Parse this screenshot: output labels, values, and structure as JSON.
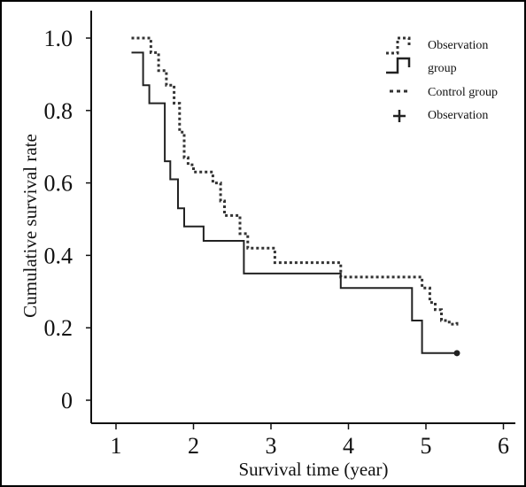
{
  "chart_data": {
    "type": "line",
    "subtype": "kaplan-meier-step",
    "title": "",
    "xlabel": "Survival time (year)",
    "ylabel": "Cumulative survival rate",
    "xlim": [
      0.7,
      6.0
    ],
    "ylim": [
      -0.05,
      1.05
    ],
    "xticks": [
      1,
      2,
      3,
      4,
      5,
      6
    ],
    "yticks": [
      {
        "value": 0,
        "label": "0"
      },
      {
        "value": 0.2,
        "label": "0.2"
      },
      {
        "value": 0.4,
        "label": "0.4"
      },
      {
        "value": 0.6,
        "label": "0.6"
      },
      {
        "value": 0.8,
        "label": "0.8"
      },
      {
        "value": 1.0,
        "label": "1.0"
      }
    ],
    "grid": false,
    "legend_position": "top-right",
    "legend": [
      {
        "label": "Observation",
        "style": "dotted-step"
      },
      {
        "label": "group",
        "style": "solid-step"
      },
      {
        "label": "Control group",
        "style": "dotted-dash"
      },
      {
        "label": "Observation",
        "style": "cross"
      }
    ],
    "series": [
      {
        "style": "dotted",
        "color": "#333333",
        "points": [
          [
            1.2,
            1.0
          ],
          [
            1.45,
            1.0
          ],
          [
            1.45,
            0.96
          ],
          [
            1.55,
            0.96
          ],
          [
            1.55,
            0.91
          ],
          [
            1.65,
            0.91
          ],
          [
            1.65,
            0.87
          ],
          [
            1.75,
            0.87
          ],
          [
            1.75,
            0.82
          ],
          [
            1.82,
            0.82
          ],
          [
            1.82,
            0.74
          ],
          [
            1.88,
            0.74
          ],
          [
            1.88,
            0.67
          ],
          [
            1.93,
            0.67
          ],
          [
            1.93,
            0.65
          ],
          [
            2.0,
            0.65
          ],
          [
            2.0,
            0.63
          ],
          [
            2.25,
            0.63
          ],
          [
            2.25,
            0.6
          ],
          [
            2.35,
            0.6
          ],
          [
            2.35,
            0.55
          ],
          [
            2.4,
            0.55
          ],
          [
            2.4,
            0.51
          ],
          [
            2.6,
            0.51
          ],
          [
            2.6,
            0.46
          ],
          [
            2.7,
            0.46
          ],
          [
            2.7,
            0.42
          ],
          [
            3.05,
            0.42
          ],
          [
            3.05,
            0.38
          ],
          [
            3.9,
            0.38
          ],
          [
            3.9,
            0.34
          ],
          [
            4.95,
            0.34
          ],
          [
            4.95,
            0.31
          ],
          [
            5.05,
            0.31
          ],
          [
            5.05,
            0.27
          ],
          [
            5.12,
            0.27
          ],
          [
            5.12,
            0.25
          ],
          [
            5.2,
            0.25
          ],
          [
            5.2,
            0.22
          ],
          [
            5.3,
            0.22
          ],
          [
            5.3,
            0.21
          ],
          [
            5.4,
            0.21
          ],
          [
            5.4,
            0.22
          ]
        ]
      },
      {
        "style": "solid",
        "color": "#222222",
        "points": [
          [
            1.2,
            0.96
          ],
          [
            1.35,
            0.96
          ],
          [
            1.35,
            0.87
          ],
          [
            1.43,
            0.87
          ],
          [
            1.43,
            0.82
          ],
          [
            1.63,
            0.82
          ],
          [
            1.63,
            0.66
          ],
          [
            1.7,
            0.66
          ],
          [
            1.7,
            0.61
          ],
          [
            1.8,
            0.61
          ],
          [
            1.8,
            0.53
          ],
          [
            1.88,
            0.53
          ],
          [
            1.88,
            0.48
          ],
          [
            2.13,
            0.48
          ],
          [
            2.13,
            0.44
          ],
          [
            2.65,
            0.44
          ],
          [
            2.65,
            0.35
          ],
          [
            3.9,
            0.35
          ],
          [
            3.9,
            0.31
          ],
          [
            4.82,
            0.31
          ],
          [
            4.82,
            0.22
          ],
          [
            4.95,
            0.22
          ],
          [
            4.95,
            0.13
          ],
          [
            5.4,
            0.13
          ]
        ],
        "end_marker": [
          5.4,
          0.13
        ]
      }
    ]
  }
}
